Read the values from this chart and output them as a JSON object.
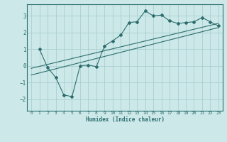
{
  "title": "",
  "xlabel": "Humidex (Indice chaleur)",
  "ylabel": "",
  "bg_color": "#cce8e8",
  "line_color": "#2e6e6e",
  "grid_color": "#aacfcf",
  "xlim": [
    -0.5,
    23.5
  ],
  "ylim": [
    -2.7,
    3.7
  ],
  "yticks": [
    -2,
    -1,
    0,
    1,
    2,
    3
  ],
  "xticks": [
    0,
    1,
    2,
    3,
    4,
    5,
    6,
    7,
    8,
    9,
    10,
    11,
    12,
    13,
    14,
    15,
    16,
    17,
    18,
    19,
    20,
    21,
    22,
    23
  ],
  "main_x": [
    1,
    2,
    3,
    4,
    5,
    6,
    7,
    8,
    9,
    10,
    11,
    12,
    13,
    14,
    15,
    16,
    17,
    18,
    19,
    20,
    21,
    22,
    23
  ],
  "main_y": [
    1.0,
    -0.1,
    -0.7,
    -1.75,
    -1.85,
    0.0,
    0.05,
    -0.05,
    1.2,
    1.5,
    1.85,
    2.6,
    2.65,
    3.3,
    3.0,
    3.05,
    2.7,
    2.55,
    2.6,
    2.65,
    2.9,
    2.65,
    2.4
  ],
  "line1_x": [
    0,
    23
  ],
  "line1_y": [
    -0.55,
    2.3
  ],
  "line2_x": [
    0,
    23
  ],
  "line2_y": [
    -0.15,
    2.55
  ]
}
